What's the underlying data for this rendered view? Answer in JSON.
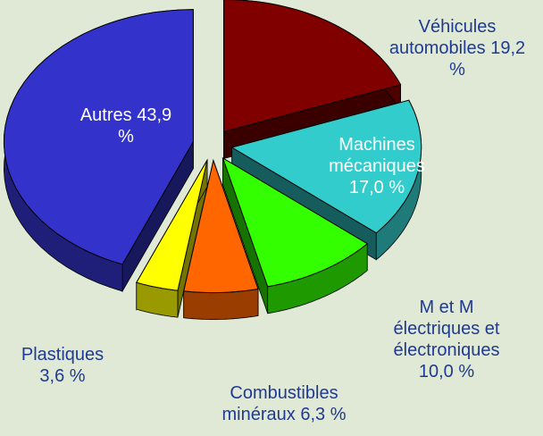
{
  "chart_data": {
    "type": "pie",
    "categories": [
      "Véhicules automobiles",
      "Machines mécaniques",
      "M et M électriques et électroniques",
      "Combustibles minéraux",
      "Plastiques",
      "Autres"
    ],
    "values": [
      19.2,
      17.0,
      10.0,
      6.3,
      3.6,
      43.9
    ],
    "value_labels": [
      "19,2 %",
      "17,0 %",
      "10,0 %",
      "6,3 %",
      "3,6 %",
      "43,9 %"
    ],
    "colors": [
      "#800000",
      "#33cccc",
      "#33ff00",
      "#ff6600",
      "#ffff00",
      "#3333cc"
    ]
  }
}
